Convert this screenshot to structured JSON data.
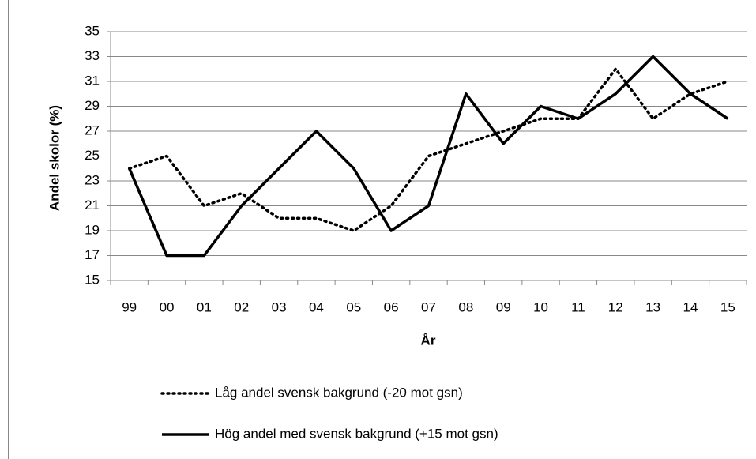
{
  "chart_data": {
    "type": "line",
    "x_label": "År",
    "y_label": "Andel skolor (%)",
    "categories": [
      "99",
      "00",
      "01",
      "02",
      "03",
      "04",
      "05",
      "06",
      "07",
      "08",
      "09",
      "10",
      "11",
      "12",
      "13",
      "14",
      "15"
    ],
    "series": [
      {
        "name": "Låg andel svensk bakgrund (-20 mot gsn)",
        "color": "#000000",
        "linestyle": "dotted",
        "values": [
          24,
          25,
          21,
          22,
          20,
          20,
          19,
          21,
          25,
          26,
          27,
          28,
          28,
          32,
          28,
          30,
          31
        ]
      },
      {
        "name": "Hög andel med svensk bakgrund (+15 mot gsn)",
        "color": "#000000",
        "linestyle": "solid",
        "values": [
          24,
          17,
          17,
          21,
          24,
          27,
          24,
          19,
          21,
          30,
          26,
          29,
          28,
          30,
          33,
          30,
          28
        ]
      }
    ],
    "ylim": [
      15,
      35
    ],
    "yticks": [
      15,
      17,
      19,
      21,
      23,
      25,
      27,
      29,
      31,
      33,
      35
    ],
    "grid": true,
    "legend": "bottom"
  }
}
